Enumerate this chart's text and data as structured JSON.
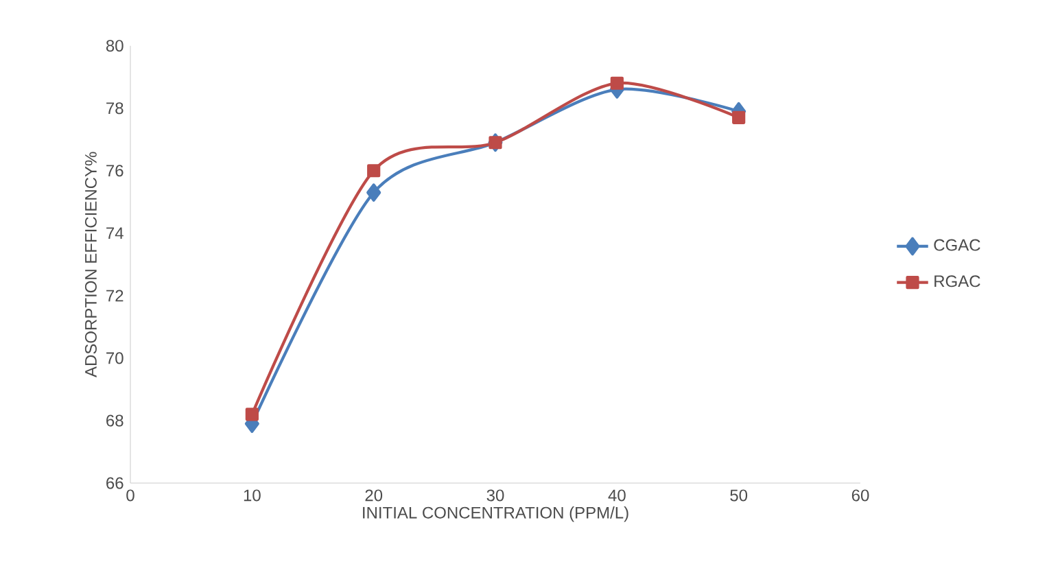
{
  "chart_data": {
    "type": "line",
    "xlabel": "INITIAL CONCENTRATION (PPM/L)",
    "ylabel": "ADSORPTION EFFICIENCY%",
    "x": [
      10,
      20,
      30,
      40,
      50
    ],
    "series": [
      {
        "name": "CGAC",
        "color": "#4a7ebb",
        "marker": "diamond",
        "values": [
          67.9,
          75.3,
          76.9,
          78.6,
          77.9
        ]
      },
      {
        "name": "RGAC",
        "color": "#be4b48",
        "marker": "square",
        "values": [
          68.2,
          76.0,
          76.9,
          78.8,
          77.7
        ]
      }
    ],
    "xlim": [
      0,
      60
    ],
    "xticks": [
      0,
      10,
      20,
      30,
      40,
      50,
      60
    ],
    "ylim": [
      66,
      80
    ],
    "yticks": [
      66,
      68,
      70,
      72,
      74,
      76,
      78,
      80
    ],
    "grid": false,
    "legend": "right",
    "line_style": "solid"
  }
}
